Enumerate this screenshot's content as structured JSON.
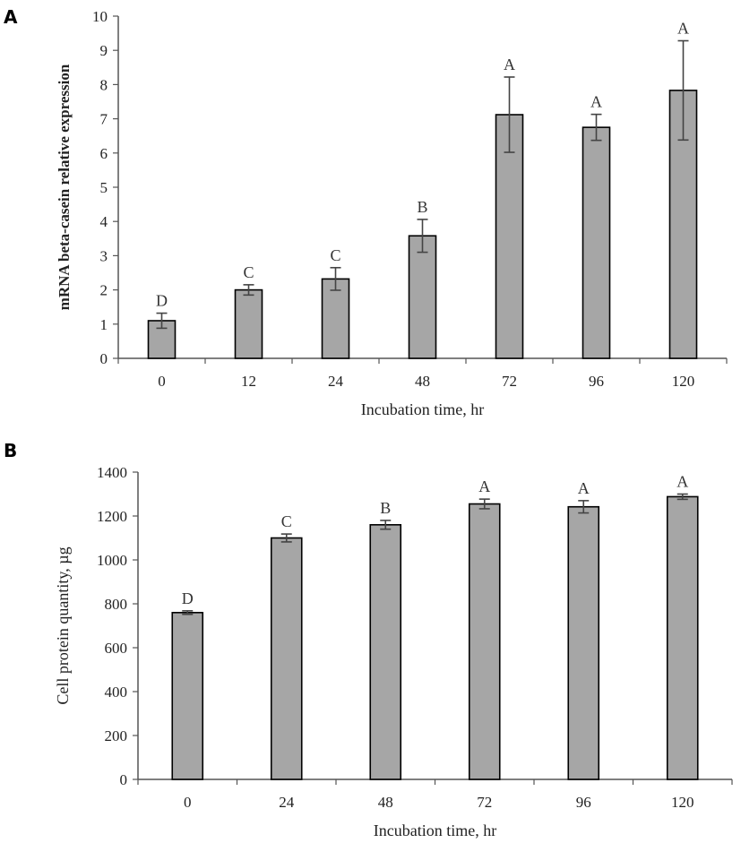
{
  "chart_data": [
    {
      "panel": "A",
      "type": "bar",
      "categories": [
        "0",
        "12",
        "24",
        "48",
        "72",
        "96",
        "120"
      ],
      "values": [
        1.1,
        2.0,
        2.32,
        3.58,
        7.12,
        6.75,
        7.83
      ],
      "errors": [
        0.22,
        0.15,
        0.33,
        0.48,
        1.1,
        0.38,
        1.45
      ],
      "significance": [
        "D",
        "C",
        "C",
        "B",
        "A",
        "A",
        "A"
      ],
      "xlabel": "Incubation time, hr",
      "ylabel": "mRNA beta-casein relative expression",
      "ylim": [
        0,
        10
      ],
      "yticks": [
        "0",
        "1",
        "2",
        "3",
        "4",
        "5",
        "6",
        "7",
        "8",
        "9",
        "10"
      ],
      "bar_color": "#a6a6a6",
      "grid": false
    },
    {
      "panel": "B",
      "type": "bar",
      "categories": [
        "0",
        "24",
        "48",
        "72",
        "96",
        "120"
      ],
      "values": [
        760,
        1100,
        1160,
        1255,
        1242,
        1288
      ],
      "errors": [
        8,
        18,
        20,
        22,
        28,
        12
      ],
      "significance": [
        "D",
        "C",
        "B",
        "A",
        "A",
        "A"
      ],
      "xlabel": "Incubation time, hr",
      "ylabel": "Cell protein quantity, µg",
      "ylim": [
        0,
        1400
      ],
      "yticks": [
        "0",
        "200",
        "400",
        "600",
        "800",
        "1000",
        "1200",
        "1400"
      ],
      "bar_color": "#a6a6a6",
      "grid": false
    }
  ]
}
